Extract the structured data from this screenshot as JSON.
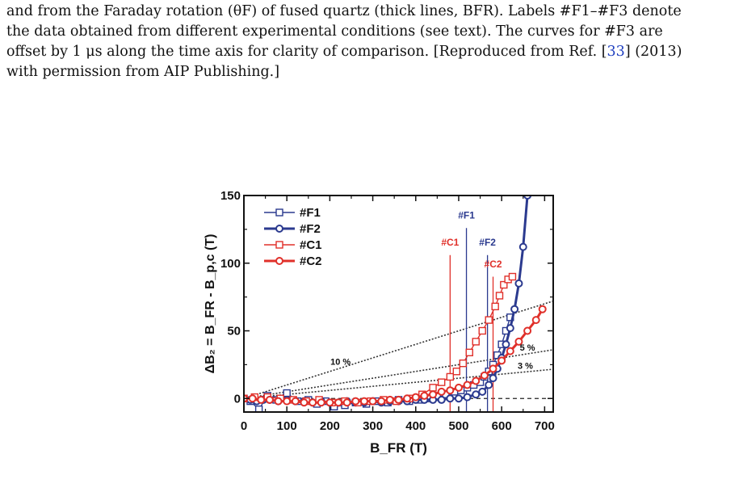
{
  "caption": {
    "line1": "and from the Faraday rotation (θF) of fused quartz (thick lines, BFR). Labels #F1–#F3 denote",
    "line2": "the data obtained from different experimental conditions (see text). The curves for #F3 are",
    "line3_pre": "offset by 1 μs along the time axis for clarity of comparison. [Reproduced from Ref. [",
    "line3_ref": "33",
    "line3_post": "] (2013)",
    "line4": "with permission from AIP Publishing.]"
  },
  "chart_data": {
    "type": "scatter",
    "xlabel": "B_FR (T)",
    "ylabel": "ΔB₂ = B_FR - B_p,c (T)",
    "xlim": [
      0,
      720
    ],
    "ylim": [
      -10,
      150
    ],
    "xticks": [
      0,
      100,
      200,
      300,
      400,
      500,
      600,
      700
    ],
    "yticks": [
      0,
      50,
      100,
      150
    ],
    "xtick_labels": [
      "0",
      "100",
      "200",
      "300",
      "400",
      "500",
      "600",
      "700"
    ],
    "ytick_labels": [
      "0",
      "50",
      "100",
      "150"
    ],
    "legend_position": "top-left",
    "series": [
      {
        "name": "#F1",
        "color": "#2b3a8f",
        "marker": "square",
        "thick": false,
        "x": [
          0,
          15,
          35,
          55,
          75,
          100,
          125,
          150,
          170,
          190,
          210,
          235,
          260,
          285,
          310,
          335,
          360,
          385,
          410,
          430,
          450,
          470,
          490,
          505,
          520,
          535,
          550,
          560,
          570,
          580,
          590,
          600,
          610,
          620
        ],
        "y": [
          0,
          -2,
          -8,
          2,
          -1,
          4,
          -2,
          -1,
          -4,
          -2,
          -6,
          -5,
          -3,
          -4,
          -2,
          -3,
          -1,
          -2,
          -1,
          0,
          2,
          3,
          5,
          6,
          8,
          10,
          12,
          16,
          20,
          25,
          32,
          40,
          50,
          60
        ]
      },
      {
        "name": "#F2",
        "color": "#2b3a8f",
        "marker": "circle",
        "thick": true,
        "x": [
          0,
          15,
          30,
          45,
          60,
          80,
          100,
          120,
          140,
          160,
          180,
          200,
          220,
          240,
          260,
          280,
          300,
          320,
          340,
          360,
          380,
          400,
          420,
          440,
          460,
          480,
          500,
          520,
          540,
          555,
          570,
          580,
          590,
          600,
          610,
          620,
          630,
          640,
          650,
          660
        ],
        "y": [
          0,
          -1,
          -2,
          -1,
          -1,
          -2,
          -1,
          -2,
          -2,
          -3,
          -2,
          -3,
          -3,
          -2,
          -3,
          -3,
          -2,
          -3,
          -2,
          -2,
          -2,
          -1,
          -1,
          -1,
          -1,
          0,
          0,
          1,
          3,
          5,
          10,
          15,
          22,
          30,
          40,
          52,
          66,
          85,
          112,
          150
        ]
      },
      {
        "name": "#C1",
        "color": "#e0302a",
        "marker": "square",
        "thick": false,
        "x": [
          0,
          25,
          55,
          85,
          115,
          145,
          175,
          205,
          235,
          265,
          295,
          325,
          355,
          385,
          415,
          440,
          460,
          480,
          495,
          510,
          525,
          540,
          555,
          570,
          585,
          595,
          605,
          615,
          625
        ],
        "y": [
          0,
          1,
          1,
          0,
          -1,
          -2,
          -1,
          -3,
          -2,
          -3,
          -2,
          -1,
          -2,
          0,
          3,
          8,
          12,
          16,
          20,
          26,
          34,
          42,
          50,
          58,
          68,
          76,
          84,
          88,
          90
        ]
      },
      {
        "name": "#C2",
        "color": "#e0302a",
        "marker": "circle",
        "thick": true,
        "x": [
          0,
          20,
          40,
          60,
          80,
          100,
          120,
          140,
          160,
          180,
          200,
          220,
          240,
          260,
          280,
          300,
          320,
          340,
          360,
          380,
          400,
          420,
          440,
          460,
          480,
          500,
          520,
          540,
          560,
          580,
          600,
          620,
          640,
          660,
          680,
          695
        ],
        "y": [
          0,
          0,
          -1,
          -1,
          -2,
          -2,
          -2,
          -3,
          -3,
          -3,
          -3,
          -3,
          -3,
          -2,
          -2,
          -2,
          -2,
          -1,
          -1,
          0,
          1,
          2,
          3,
          5,
          6,
          8,
          10,
          13,
          17,
          22,
          28,
          35,
          42,
          50,
          58,
          66
        ]
      }
    ],
    "ref_lines": [
      {
        "label": "10 %",
        "slope": 0.1
      },
      {
        "label": "5 %",
        "slope": 0.05
      },
      {
        "label": "3 %",
        "slope": 0.03
      }
    ],
    "markers": [
      {
        "label": "#F1",
        "x": 518,
        "color": "#2b3a8f"
      },
      {
        "label": "#F2",
        "x": 567,
        "color": "#2b3a8f"
      },
      {
        "label": "#C1",
        "x": 480,
        "color": "#e0302a"
      },
      {
        "label": "#C2",
        "x": 580,
        "color": "#e0302a"
      }
    ]
  }
}
